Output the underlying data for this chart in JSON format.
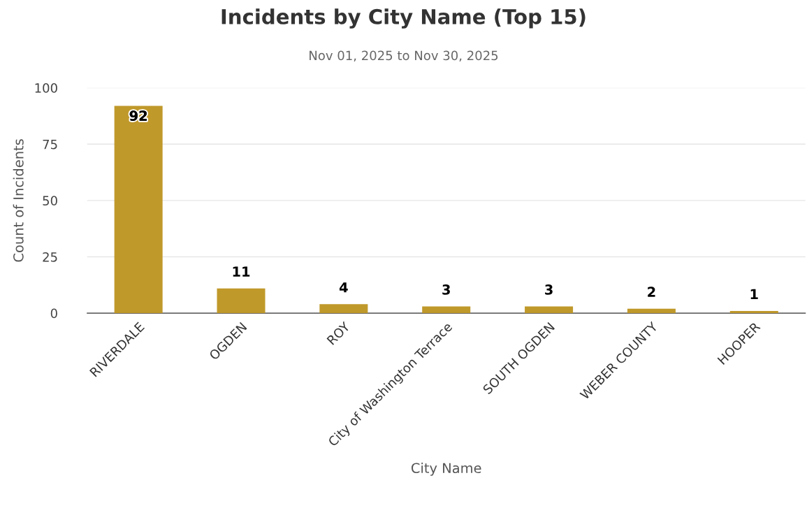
{
  "chart_data": {
    "type": "bar",
    "title": "Incidents by City Name (Top 15)",
    "subtitle": "Nov 01, 2025 to Nov 30, 2025",
    "xlabel": "City Name",
    "ylabel": "Count of Incidents",
    "categories": [
      "RIVERDALE",
      "OGDEN",
      "ROY",
      "City of Washington Terrace",
      "SOUTH OGDEN",
      "WEBER COUNTY",
      "HOOPER"
    ],
    "values": [
      92,
      11,
      4,
      3,
      3,
      2,
      1
    ],
    "color": "#c0992b",
    "ylim": [
      0,
      100
    ],
    "yticks": [
      0,
      25,
      50,
      75,
      100
    ],
    "grid": "y",
    "data_labels": true
  }
}
